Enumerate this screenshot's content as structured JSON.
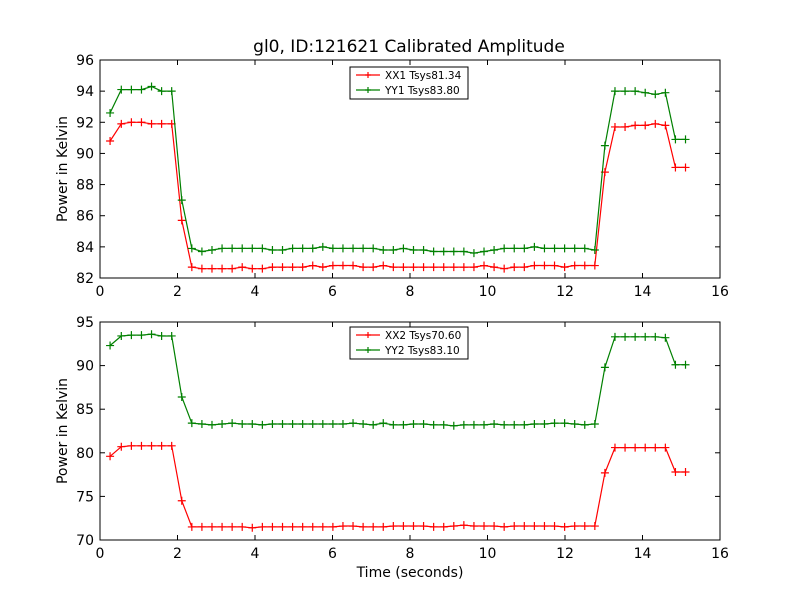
{
  "figure": {
    "title": "gl0, ID:121621 Calibrated Amplitude"
  },
  "chart_data": [
    {
      "type": "line",
      "xlabel": "",
      "ylabel": "Power in Kelvin",
      "xlim": [
        0,
        16
      ],
      "ylim": [
        82,
        96
      ],
      "xticks": [
        0,
        2,
        4,
        6,
        8,
        10,
        12,
        14,
        16
      ],
      "yticks": [
        82,
        84,
        86,
        88,
        90,
        92,
        94,
        96
      ],
      "grid": false,
      "legend_position": "top-center",
      "marker": "plus",
      "x": [
        0.26,
        0.55,
        0.81,
        1.07,
        1.33,
        1.59,
        1.85,
        2.11,
        2.37,
        2.63,
        2.89,
        3.15,
        3.41,
        3.67,
        3.93,
        4.19,
        4.45,
        4.71,
        4.97,
        5.23,
        5.49,
        5.75,
        6.01,
        6.27,
        6.53,
        6.79,
        7.05,
        7.31,
        7.57,
        7.83,
        8.09,
        8.35,
        8.61,
        8.87,
        9.13,
        9.39,
        9.65,
        9.91,
        10.17,
        10.43,
        10.69,
        10.95,
        11.21,
        11.47,
        11.73,
        11.99,
        12.25,
        12.51,
        12.77,
        13.03,
        13.29,
        13.55,
        13.81,
        14.07,
        14.33,
        14.59,
        14.85,
        15.11
      ],
      "series": [
        {
          "name": "XX1 Tsys81.34",
          "color": "#ff0000",
          "values": [
            90.8,
            91.9,
            92.0,
            92.0,
            91.9,
            91.9,
            91.9,
            85.7,
            82.7,
            82.6,
            82.6,
            82.6,
            82.6,
            82.7,
            82.6,
            82.6,
            82.7,
            82.7,
            82.7,
            82.7,
            82.8,
            82.7,
            82.8,
            82.8,
            82.8,
            82.7,
            82.7,
            82.8,
            82.7,
            82.7,
            82.7,
            82.7,
            82.7,
            82.7,
            82.7,
            82.7,
            82.7,
            82.8,
            82.7,
            82.6,
            82.7,
            82.7,
            82.8,
            82.8,
            82.8,
            82.7,
            82.8,
            82.8,
            82.8,
            88.8,
            91.7,
            91.7,
            91.8,
            91.8,
            91.9,
            91.8,
            89.1,
            89.1
          ]
        },
        {
          "name": "YY1 Tsys83.80",
          "color": "#008000",
          "values": [
            92.6,
            94.1,
            94.1,
            94.1,
            94.3,
            94.0,
            94.0,
            87.0,
            83.9,
            83.7,
            83.8,
            83.9,
            83.9,
            83.9,
            83.9,
            83.9,
            83.8,
            83.8,
            83.9,
            83.9,
            83.9,
            84.0,
            83.9,
            83.9,
            83.9,
            83.9,
            83.9,
            83.8,
            83.8,
            83.9,
            83.8,
            83.8,
            83.7,
            83.7,
            83.7,
            83.7,
            83.6,
            83.7,
            83.8,
            83.9,
            83.9,
            83.9,
            84.0,
            83.9,
            83.9,
            83.9,
            83.9,
            83.9,
            83.8,
            90.5,
            94.0,
            94.0,
            94.0,
            93.9,
            93.8,
            93.9,
            90.9,
            90.9
          ]
        }
      ]
    },
    {
      "type": "line",
      "xlabel": "Time (seconds)",
      "ylabel": "Power in Kelvin",
      "xlim": [
        0,
        16
      ],
      "ylim": [
        70,
        95
      ],
      "xticks": [
        0,
        2,
        4,
        6,
        8,
        10,
        12,
        14,
        16
      ],
      "yticks": [
        70,
        75,
        80,
        85,
        90,
        95
      ],
      "grid": false,
      "legend_position": "top-center",
      "marker": "plus",
      "x": [
        0.26,
        0.55,
        0.81,
        1.07,
        1.33,
        1.59,
        1.85,
        2.11,
        2.37,
        2.63,
        2.89,
        3.15,
        3.41,
        3.67,
        3.93,
        4.19,
        4.45,
        4.71,
        4.97,
        5.23,
        5.49,
        5.75,
        6.01,
        6.27,
        6.53,
        6.79,
        7.05,
        7.31,
        7.57,
        7.83,
        8.09,
        8.35,
        8.61,
        8.87,
        9.13,
        9.39,
        9.65,
        9.91,
        10.17,
        10.43,
        10.69,
        10.95,
        11.21,
        11.47,
        11.73,
        11.99,
        12.25,
        12.51,
        12.77,
        13.03,
        13.29,
        13.55,
        13.81,
        14.07,
        14.33,
        14.59,
        14.85,
        15.11
      ],
      "series": [
        {
          "name": "XX2 Tsys70.60",
          "color": "#ff0000",
          "values": [
            79.6,
            80.7,
            80.8,
            80.8,
            80.8,
            80.8,
            80.8,
            74.5,
            71.5,
            71.5,
            71.5,
            71.5,
            71.5,
            71.5,
            71.4,
            71.5,
            71.5,
            71.5,
            71.5,
            71.5,
            71.5,
            71.5,
            71.5,
            71.6,
            71.6,
            71.5,
            71.5,
            71.5,
            71.6,
            71.6,
            71.6,
            71.6,
            71.5,
            71.5,
            71.6,
            71.7,
            71.6,
            71.6,
            71.6,
            71.5,
            71.6,
            71.6,
            71.6,
            71.6,
            71.6,
            71.5,
            71.6,
            71.6,
            71.6,
            77.7,
            80.6,
            80.6,
            80.6,
            80.6,
            80.6,
            80.6,
            77.8,
            77.8
          ]
        },
        {
          "name": "YY2 Tsys83.10",
          "color": "#008000",
          "values": [
            92.3,
            93.4,
            93.5,
            93.5,
            93.6,
            93.4,
            93.4,
            86.4,
            83.4,
            83.3,
            83.2,
            83.3,
            83.4,
            83.3,
            83.3,
            83.2,
            83.3,
            83.3,
            83.3,
            83.3,
            83.3,
            83.3,
            83.3,
            83.3,
            83.4,
            83.3,
            83.2,
            83.4,
            83.2,
            83.2,
            83.3,
            83.3,
            83.2,
            83.2,
            83.1,
            83.2,
            83.2,
            83.2,
            83.3,
            83.2,
            83.2,
            83.2,
            83.3,
            83.3,
            83.4,
            83.4,
            83.3,
            83.2,
            83.3,
            89.8,
            93.3,
            93.3,
            93.3,
            93.3,
            93.3,
            93.2,
            90.1,
            90.1
          ]
        }
      ]
    }
  ]
}
